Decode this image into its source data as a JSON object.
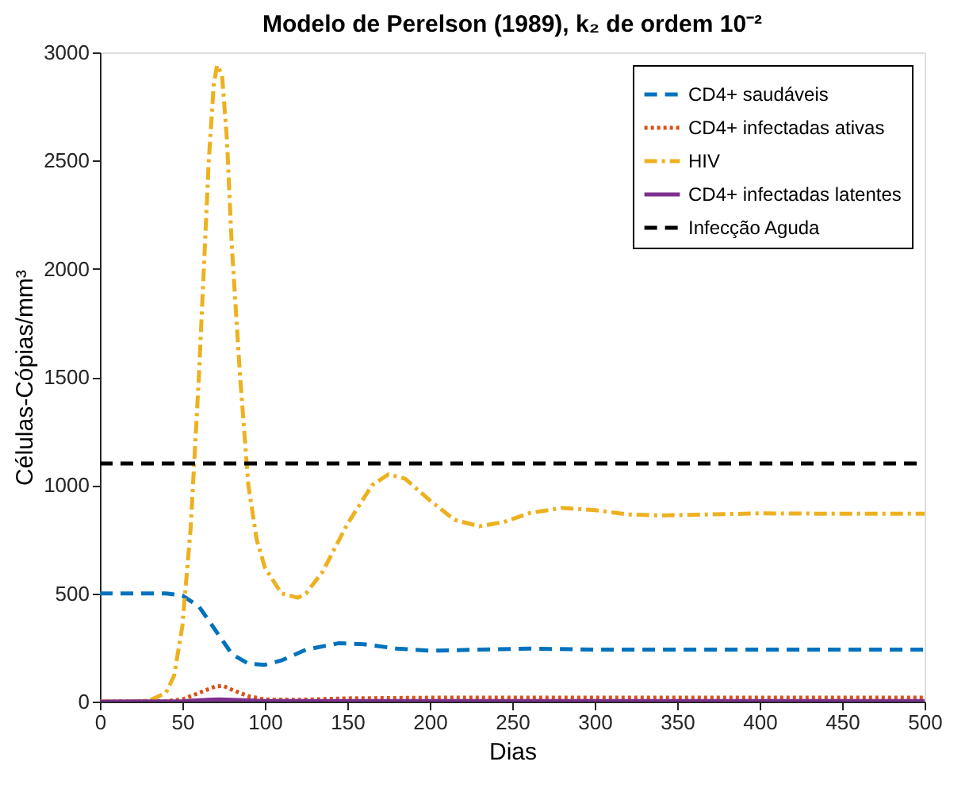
{
  "chart_data": {
    "type": "line",
    "title": "Modelo de Perelson (1989), k₂ de ordem 10⁻²",
    "xlabel": "Dias",
    "ylabel": "Células-Cópias/mm³",
    "xlim": [
      0,
      500
    ],
    "ylim": [
      0,
      3000
    ],
    "xticks": [
      0,
      50,
      100,
      150,
      200,
      250,
      300,
      350,
      400,
      450,
      500
    ],
    "yticks": [
      0,
      500,
      1000,
      1500,
      2000,
      2500,
      3000
    ],
    "grid": false,
    "legend": "top right",
    "series": [
      {
        "name": "CD4+ saudáveis",
        "color": "#0072bd",
        "line_style": "dashed",
        "x": [
          0,
          40,
          50,
          60,
          70,
          80,
          90,
          100,
          110,
          125,
          145,
          160,
          180,
          200,
          230,
          260,
          300,
          400,
          500
        ],
        "values": [
          500,
          500,
          490,
          440,
          330,
          220,
          175,
          170,
          190,
          240,
          270,
          265,
          245,
          235,
          240,
          245,
          240,
          240,
          240
        ]
      },
      {
        "name": "CD4+ infectadas ativas",
        "color": "#d95319",
        "line_style": "dotted",
        "x": [
          0,
          40,
          50,
          60,
          70,
          75,
          80,
          90,
          100,
          120,
          150,
          200,
          300,
          500
        ],
        "values": [
          0,
          2,
          10,
          40,
          70,
          72,
          55,
          25,
          10,
          8,
          15,
          18,
          18,
          18
        ]
      },
      {
        "name": "HIV",
        "color": "#edb120",
        "line_style": "dashdot",
        "x": [
          0,
          10,
          20,
          30,
          40,
          45,
          50,
          55,
          60,
          63,
          66,
          69,
          71,
          74,
          77,
          80,
          85,
          90,
          95,
          100,
          110,
          120,
          125,
          135,
          150,
          165,
          175,
          185,
          200,
          215,
          230,
          245,
          260,
          280,
          300,
          320,
          340,
          370,
          400,
          450,
          500
        ],
        "values": [
          0,
          0,
          0,
          5,
          40,
          120,
          350,
          800,
          1500,
          2000,
          2500,
          2850,
          2940,
          2900,
          2600,
          2100,
          1500,
          1000,
          750,
          620,
          500,
          480,
          500,
          600,
          820,
          1000,
          1050,
          1030,
          930,
          840,
          810,
          830,
          870,
          895,
          885,
          865,
          860,
          865,
          870,
          868,
          868
        ]
      },
      {
        "name": "CD4+ infectadas latentes",
        "color": "#7e2f8e",
        "line_style": "solid",
        "x": [
          0,
          50,
          65,
          72,
          80,
          100,
          150,
          500
        ],
        "values": [
          0,
          2,
          8,
          10,
          8,
          3,
          3,
          3
        ]
      }
    ],
    "ref_lines": [
      {
        "axis": "y",
        "value": 1100,
        "label": "Infecção Aguda",
        "color": "#000000",
        "line_style": "dashed"
      }
    ]
  }
}
